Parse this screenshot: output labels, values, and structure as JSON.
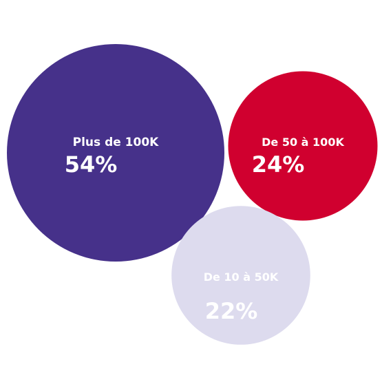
{
  "chart_data": {
    "type": "bubble",
    "title": "",
    "series": [
      {
        "label": "Plus de 100K",
        "value": 54,
        "display": "54%",
        "color": "#46318a",
        "text_color": "#ffffff"
      },
      {
        "label": "De 50 à 100K",
        "value": 24,
        "display": "24%",
        "color": "#d0002f",
        "text_color": "#ffffff"
      },
      {
        "label": "De 10 à 50K",
        "value": 22,
        "display": "22%",
        "color": "#dddbee",
        "text_color": "#ffffff"
      }
    ]
  }
}
